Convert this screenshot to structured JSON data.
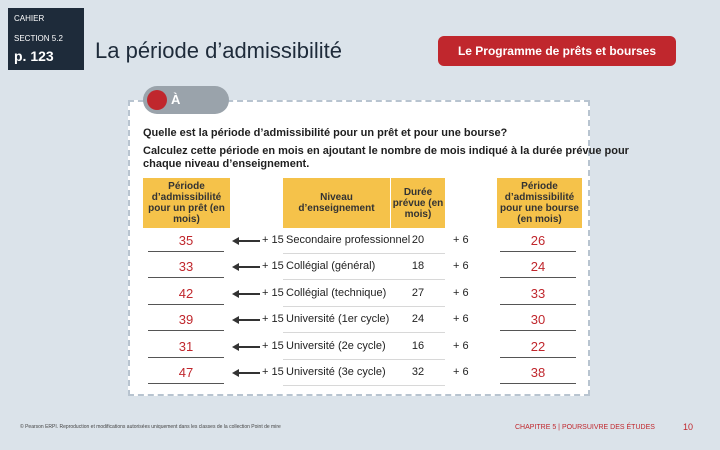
{
  "header": {
    "label": "CAHIER",
    "section": "SECTION 5.2",
    "page": "p. 123"
  },
  "title": "La période d’admissibilité",
  "button": "Le Programme de prêts et bourses",
  "note_badge": "À NOTER",
  "question": [
    "Quelle est la période d’admissibilité pour un prêt et pour une bourse?",
    "Calculez cette période en mois en ajoutant le nombre de mois indiqué à la durée prévue pour",
    "chaque niveau d’enseignement."
  ],
  "table": {
    "headers": [
      "Période d’admissibilité pour un prêt (en mois)",
      "Niveau d’enseignement",
      "Durée prévue (en mois)",
      "Période d’admissibilité pour une bourse (en mois)"
    ],
    "rows": [
      [
        35,
        "+ 15",
        "Secondaire professionnel",
        20,
        "+ 6",
        26
      ],
      [
        33,
        "+ 15",
        "Collégial (général)",
        18,
        "+ 6",
        24
      ],
      [
        42,
        "+ 15",
        "Collégial (technique)",
        27,
        "+ 6",
        33
      ],
      [
        39,
        "+ 15",
        "Université (1er cycle)",
        24,
        "+ 6",
        30
      ],
      [
        31,
        "+ 15",
        "Université (2e cycle)",
        16,
        "+ 6",
        22
      ],
      [
        47,
        "+ 15",
        "Université (3e cycle)",
        32,
        "+ 6",
        38
      ]
    ]
  },
  "footer": {
    "copyright": "© Pearson ERPI. Reproduction et modifications autorisées uniquement dans les classes de la collection Point de mire",
    "chapter": "CHAPITRE 5 | POURSUIVRE DES ÉTUDES",
    "page_number": "10"
  }
}
